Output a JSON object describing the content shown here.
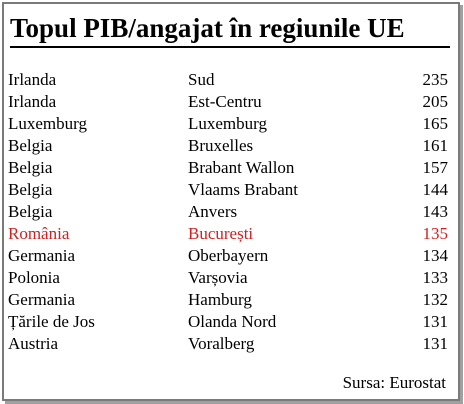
{
  "chart_data": {
    "type": "table",
    "title": "Topul PIB/angajat în regiunile UE",
    "rows": [
      {
        "country": "Irlanda",
        "region": "Sud",
        "value": 235
      },
      {
        "country": "Irlanda",
        "region": "Est-Centru",
        "value": 205
      },
      {
        "country": "Luxemburg",
        "region": "Luxemburg",
        "value": 165
      },
      {
        "country": "Belgia",
        "region": "Bruxelles",
        "value": 161
      },
      {
        "country": "Belgia",
        "region": "Brabant Wallon",
        "value": 157
      },
      {
        "country": "Belgia",
        "region": "Vlaams Brabant",
        "value": 144
      },
      {
        "country": "Belgia",
        "region": "Anvers",
        "value": 143
      },
      {
        "country": "România",
        "region": "București",
        "value": 135,
        "highlight": true
      },
      {
        "country": "Germania",
        "region": "Oberbayern",
        "value": 134
      },
      {
        "country": "Polonia",
        "region": "Varșovia",
        "value": 133
      },
      {
        "country": "Germania",
        "region": "Hamburg",
        "value": 132
      },
      {
        "country": "Țările de Jos",
        "region": "Olanda Nord",
        "value": 131
      },
      {
        "country": "Austria",
        "region": "Voralberg",
        "value": 131
      }
    ],
    "source": "Sursa: Eurostat"
  },
  "colors": {
    "highlight": "#d02020",
    "text": "#000000",
    "frame": "#7a7a7a"
  }
}
